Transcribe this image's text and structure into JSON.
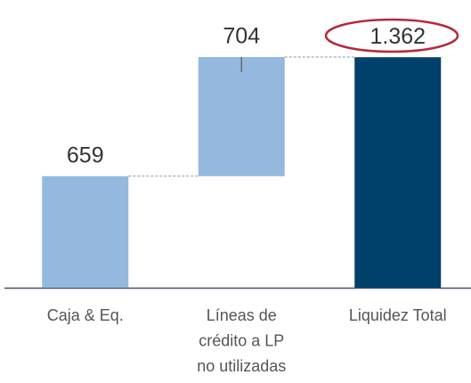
{
  "chart_data": {
    "type": "waterfall",
    "categories": [
      "Caja & Eq.",
      "Líneas de\ncrédito a LP\nno utilizadas",
      "Liquidez Total"
    ],
    "values": [
      659,
      704,
      1362
    ],
    "value_labels": [
      "659",
      "704",
      "1.362"
    ],
    "measures": [
      "relative",
      "relative",
      "total"
    ],
    "colors": [
      "#95b8de",
      "#95b8de",
      "#00416b"
    ],
    "ylim": [
      0,
      1700
    ]
  }
}
